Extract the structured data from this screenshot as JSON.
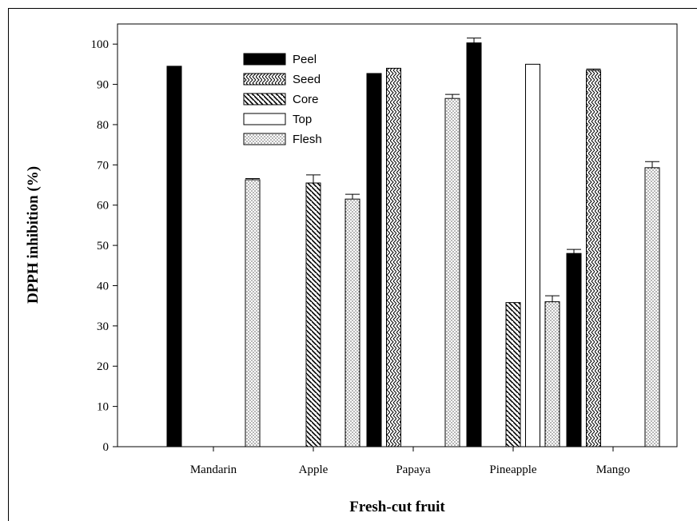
{
  "chart_data": {
    "type": "bar",
    "xlabel": "Fresh-cut fruit",
    "ylabel": "DPPH inhibition (%)",
    "ylim": [
      0,
      105
    ],
    "yticks": [
      0,
      10,
      20,
      30,
      40,
      50,
      60,
      70,
      80,
      90,
      100
    ],
    "categories": [
      "Mandarin",
      "Apple",
      "Papaya",
      "Pineapple",
      "Mango"
    ],
    "legend_position": "top-left",
    "grid": false,
    "series": [
      {
        "name": "Peel",
        "pattern": "solid",
        "values": [
          94.5,
          null,
          92.7,
          100.3,
          48.0
        ],
        "errors": [
          0,
          null,
          0,
          1.2,
          1.0
        ]
      },
      {
        "name": "Seed",
        "pattern": "chevron",
        "values": [
          null,
          null,
          94.0,
          null,
          93.5
        ],
        "errors": [
          null,
          null,
          0,
          null,
          0.3
        ]
      },
      {
        "name": "Core",
        "pattern": "hatch",
        "values": [
          null,
          65.5,
          null,
          35.8,
          null
        ],
        "errors": [
          null,
          2.0,
          null,
          0,
          null
        ]
      },
      {
        "name": "Top",
        "pattern": "empty",
        "values": [
          null,
          null,
          null,
          95.0,
          null
        ],
        "errors": [
          null,
          null,
          null,
          0,
          null
        ]
      },
      {
        "name": "Flesh",
        "pattern": "dots",
        "values": [
          66.3,
          61.5,
          86.5,
          36.0,
          69.3
        ],
        "errors": [
          0.3,
          1.2,
          1.0,
          1.5,
          1.5
        ]
      }
    ]
  }
}
